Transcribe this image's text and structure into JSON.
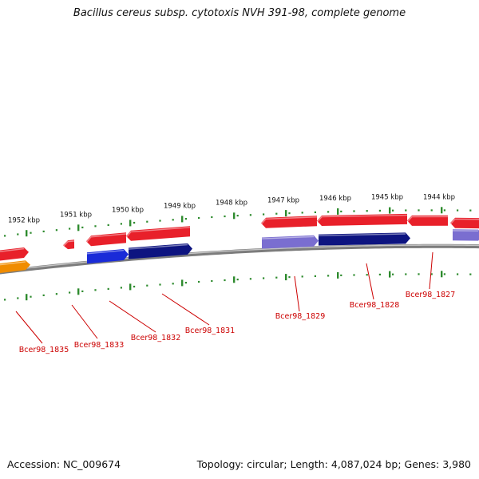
{
  "title": "Bacillus cereus subsp. cytotoxis NVH 391-98, complete genome",
  "footer": {
    "accession": "Accession: NC_009674",
    "summary": "Topology: circular; Length: 4,087,024 bp; Genes: 3,980"
  },
  "colors": {
    "backbone": "#8a8a8a",
    "tick": "#2e8b2e",
    "forward_cds": "#e8202a",
    "reverse_blue": "#1a2bd8",
    "reverse_navy": "#0d1480",
    "reverse_lavender": "#7a6ed0",
    "reverse_orange": "#f08c00",
    "label": "#cc0000"
  },
  "scale_labels": [
    "1952 kbp",
    "1951 kbp",
    "1950 kbp",
    "1949 kbp",
    "1948 kbp",
    "1947 kbp",
    "1946 kbp",
    "1945 kbp",
    "1944 kbp"
  ],
  "gene_labels": [
    "Bcer98_1835",
    "Bcer98_1833",
    "Bcer98_1832",
    "Bcer98_1831",
    "Bcer98_1829",
    "Bcer98_1828",
    "Bcer98_1827"
  ]
}
